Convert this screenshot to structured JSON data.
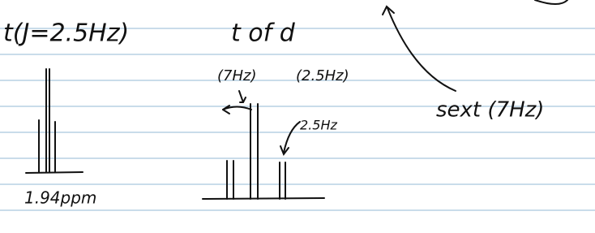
{
  "notes": [
    {
      "text": "t(J=2.5Hz)"
    },
    {
      "text": "t of d"
    },
    {
      "text": "(7Hz)"
    },
    {
      "text": "(2.5Hz)"
    },
    {
      "text": "sext (7Hz)"
    },
    {
      "text": "2.5Hz"
    },
    {
      "text": "1.94ppm"
    }
  ]
}
